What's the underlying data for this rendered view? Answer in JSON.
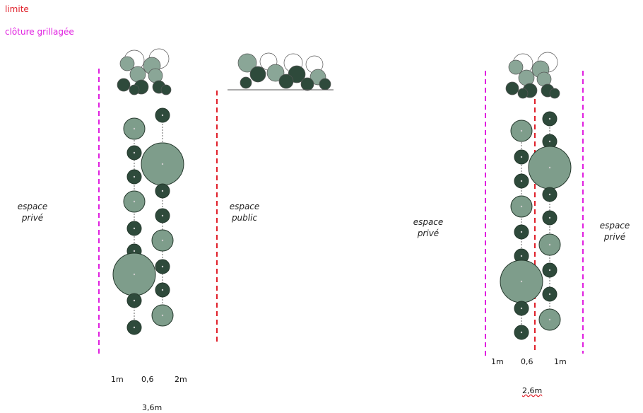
{
  "legend": {
    "limit": "limite",
    "fence": "clôture grillagée"
  },
  "diagrams": [
    {
      "labels": [
        "espace privé",
        "espace public"
      ],
      "dimensions": [
        "1m",
        "0,6",
        "2m"
      ],
      "total": "3,6m"
    },
    {
      "labels": [
        "espace privé",
        "espace privé"
      ],
      "dimensions": [
        "1m",
        "0,6",
        "1m"
      ],
      "total": "2,6m"
    }
  ]
}
